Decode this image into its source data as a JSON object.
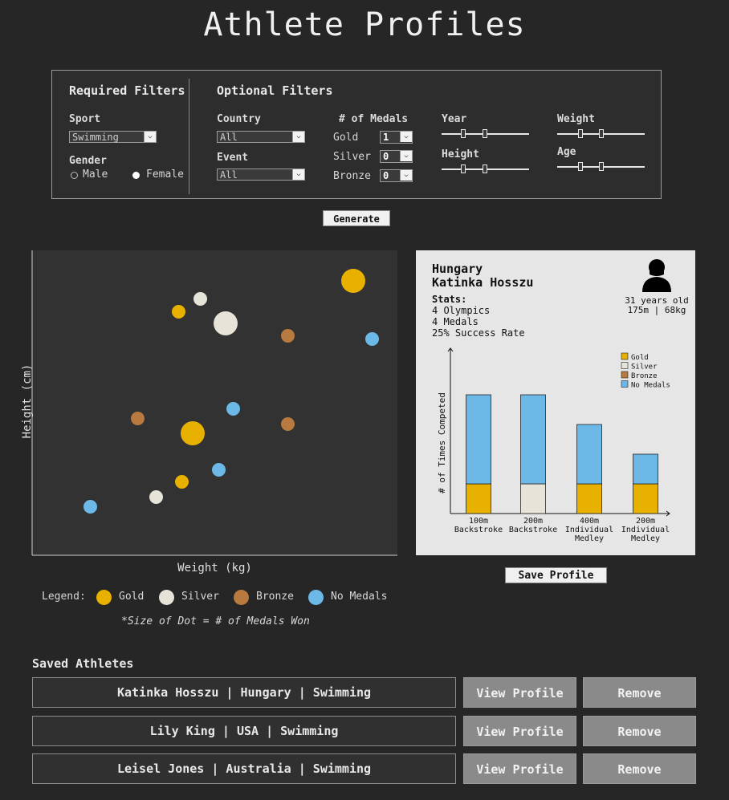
{
  "title": "Athlete Profiles",
  "filters": {
    "required_header": "Required Filters",
    "optional_header": "Optional Filters",
    "sport_label": "Sport",
    "sport_value": "Swimming",
    "gender_label": "Gender",
    "gender_male": "Male",
    "gender_female": "Female",
    "gender_selected": "Female",
    "country_label": "Country",
    "country_value": "All",
    "event_label": "Event",
    "event_value": "All",
    "medals_label": "# of Medals",
    "gold_label": "Gold",
    "gold_value": "1",
    "silver_label": "Silver",
    "silver_value": "0",
    "bronze_label": "Bronze",
    "bronze_value": "0",
    "year_label": "Year",
    "weight_label": "Weight",
    "height_label": "Height",
    "age_label": "Age"
  },
  "generate_label": "Generate",
  "scatter": {
    "xlabel": "Weight (kg)",
    "ylabel": "Height (cm)",
    "legend_prefix": "Legend:",
    "legend": [
      {
        "name": "Gold",
        "color": "#e8b100"
      },
      {
        "name": "Silver",
        "color": "#e6e3d8"
      },
      {
        "name": "Bronze",
        "color": "#b87a3e"
      },
      {
        "name": "No Medals",
        "color": "#6cb9e8"
      }
    ],
    "note": "*Size of Dot = # of Medals Won"
  },
  "profile": {
    "country": "Hungary",
    "name": "Katinka Hosszu",
    "stats_label": "Stats:",
    "stat_olympics": "4 Olympics",
    "stat_medals": "4 Medals",
    "stat_rate": "25% Success Rate",
    "age_text": "31 years old",
    "body_text": "175m | 68kg",
    "save_label": "Save Profile"
  },
  "chart_data": [
    {
      "type": "scatter",
      "xlabel": "Weight (kg)",
      "ylabel": "Height (cm)",
      "points": [
        {
          "x": 0.88,
          "y": 0.9,
          "medal": "Gold",
          "size": 2
        },
        {
          "x": 0.4,
          "y": 0.8,
          "medal": "Gold",
          "size": 1
        },
        {
          "x": 0.46,
          "y": 0.84,
          "medal": "Silver",
          "size": 1
        },
        {
          "x": 0.53,
          "y": 0.76,
          "medal": "Silver",
          "size": 2
        },
        {
          "x": 0.7,
          "y": 0.72,
          "medal": "Bronze",
          "size": 1
        },
        {
          "x": 0.93,
          "y": 0.71,
          "medal": "No Medals",
          "size": 1
        },
        {
          "x": 0.55,
          "y": 0.48,
          "medal": "No Medals",
          "size": 1
        },
        {
          "x": 0.29,
          "y": 0.45,
          "medal": "Bronze",
          "size": 1
        },
        {
          "x": 0.44,
          "y": 0.4,
          "medal": "Gold",
          "size": 2
        },
        {
          "x": 0.7,
          "y": 0.43,
          "medal": "Bronze",
          "size": 1
        },
        {
          "x": 0.51,
          "y": 0.28,
          "medal": "No Medals",
          "size": 1
        },
        {
          "x": 0.41,
          "y": 0.24,
          "medal": "Gold",
          "size": 1
        },
        {
          "x": 0.34,
          "y": 0.19,
          "medal": "Silver",
          "size": 1
        },
        {
          "x": 0.16,
          "y": 0.16,
          "medal": "No Medals",
          "size": 1
        }
      ]
    },
    {
      "type": "bar",
      "stacked": true,
      "ylabel": "# of Times Competed",
      "categories": [
        "100m Backstroke",
        "200m Backstroke",
        "400m Individual Medley",
        "200m Individual Medley"
      ],
      "series": [
        {
          "name": "Gold",
          "values": [
            1,
            0,
            1,
            1
          ]
        },
        {
          "name": "Silver",
          "values": [
            0,
            1,
            0,
            0
          ]
        },
        {
          "name": "Bronze",
          "values": [
            0,
            0,
            0,
            0
          ]
        },
        {
          "name": "No Medals",
          "values": [
            3,
            3,
            2,
            1
          ]
        }
      ],
      "legend": "top-right",
      "colors": {
        "Gold": "#e8b100",
        "Silver": "#e6e3d8",
        "Bronze": "#b87a3e",
        "No Medals": "#6cb9e8"
      }
    }
  ],
  "saved": {
    "header": "Saved Athletes",
    "rows": [
      {
        "label": "Katinka Hosszu | Hungary | Swimming"
      },
      {
        "label": "Lily King | USA | Swimming"
      },
      {
        "label": "Leisel Jones | Australia | Swimming"
      }
    ],
    "view_label": "View Profile",
    "remove_label": "Remove"
  }
}
